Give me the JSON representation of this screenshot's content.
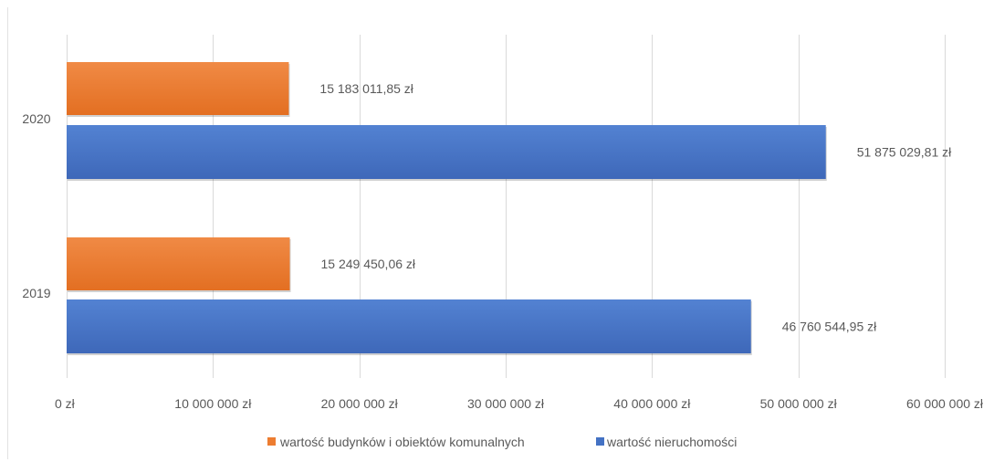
{
  "chart_data": {
    "type": "bar",
    "orientation": "horizontal",
    "categories": [
      "2020",
      "2019"
    ],
    "series": [
      {
        "name": "wartość budynków i obiektów komunalnych",
        "color": "#ED7D31",
        "values": [
          15183011.85,
          15249450.06
        ],
        "labels": [
          "15 183 011,85 zł",
          "15 249 450,06 zł"
        ]
      },
      {
        "name": "wartość nieruchomości",
        "color": "#4472C4",
        "values": [
          51875029.81,
          46760544.95
        ],
        "labels": [
          "51 875 029,81 zł",
          "46 760 544,95 zł"
        ]
      }
    ],
    "xlim": [
      0,
      60000000
    ],
    "xticks": [
      0,
      10000000,
      20000000,
      30000000,
      40000000,
      50000000,
      60000000
    ],
    "xtick_labels": [
      "0 zł",
      "10 000 000 zł",
      "20 000 000 zł",
      "30 000 000 zł",
      "40 000 000 zł",
      "50 000 000 zł",
      "60 000 000 zł"
    ],
    "title": "",
    "xlabel": "",
    "ylabel": "",
    "grid": true,
    "legend_position": "bottom"
  }
}
